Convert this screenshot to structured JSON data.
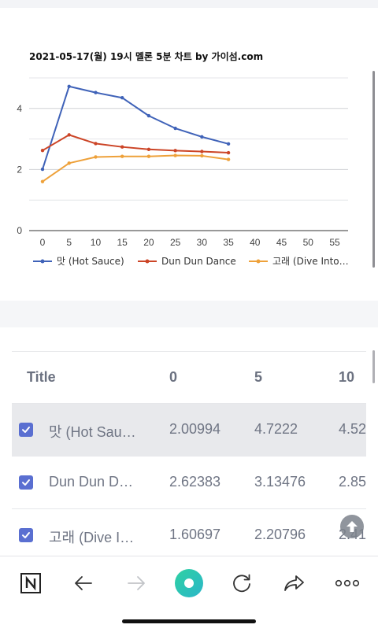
{
  "chart_data": {
    "type": "line",
    "title": "2021-05-17(월) 19시 멜론 5분 차트 by 가이섬.com",
    "x_ticks": [
      0,
      5,
      10,
      15,
      20,
      25,
      30,
      35,
      40,
      45,
      50,
      55
    ],
    "y_ticks": [
      0,
      2,
      4
    ],
    "xlim": [
      0,
      55
    ],
    "ylim": [
      0,
      5
    ],
    "grid": true,
    "legend_position": "bottom",
    "x": [
      0,
      5,
      10,
      15,
      20,
      25,
      30,
      35
    ],
    "series": [
      {
        "name": "맛 (Hot Sauce)",
        "color": "#3f62b8",
        "values": [
          2.00994,
          4.7222,
          4.52,
          4.35,
          3.76,
          3.35,
          3.07,
          2.84
        ]
      },
      {
        "name": "Dun Dun Dance",
        "color": "#cc4527",
        "values": [
          2.62383,
          3.13476,
          2.85,
          2.74,
          2.66,
          2.62,
          2.59,
          2.55
        ]
      },
      {
        "name": "고래 (Dive Into…",
        "color": "#eea13a",
        "values": [
          1.60697,
          2.20796,
          2.41,
          2.43,
          2.43,
          2.46,
          2.45,
          2.33
        ]
      }
    ]
  },
  "table": {
    "headers": {
      "title": "Title",
      "c0": "0",
      "c5": "5",
      "c10": "10"
    },
    "rows": [
      {
        "title": "맛 (Hot Sau…",
        "v0": "2.00994",
        "v5": "4.7222",
        "v10": "4.52"
      },
      {
        "title": "Dun Dun Da…",
        "v0": "2.62383",
        "v5": "3.13476",
        "v10": "2.85"
      },
      {
        "title": "고래 (Dive In…",
        "v0": "1.60697",
        "v5": "2.20796",
        "v10": "2.41"
      }
    ]
  },
  "toolbar": {
    "items": [
      "n-logo-icon",
      "back-arrow-icon",
      "forward-arrow-icon",
      "home-circle-icon",
      "reload-icon",
      "share-icon",
      "more-icon"
    ],
    "accent": "#2fc8a0"
  }
}
